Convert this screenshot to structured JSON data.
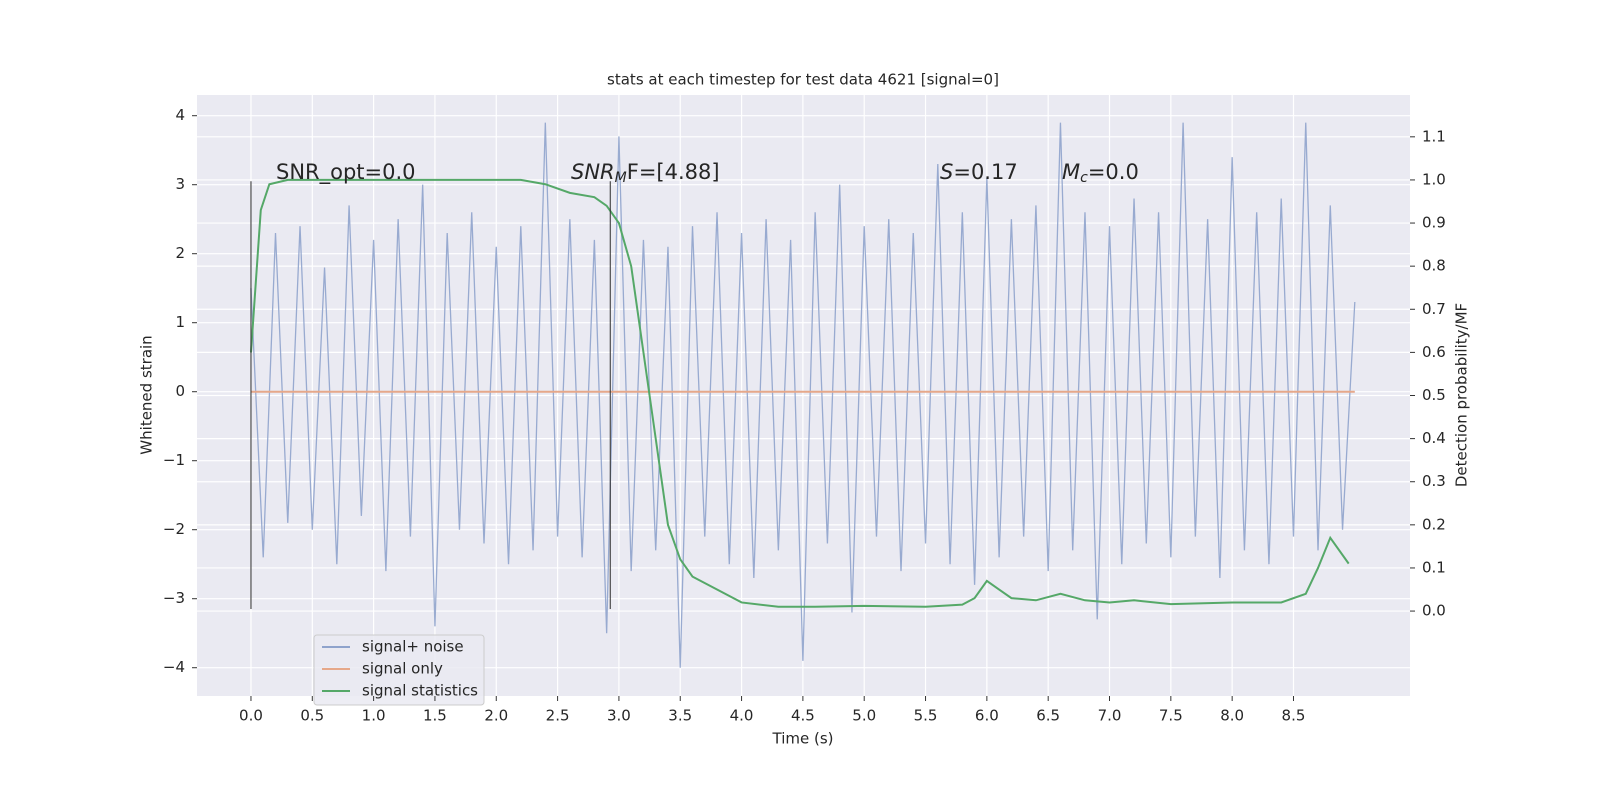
{
  "chart_data": {
    "type": "line",
    "title": "stats at each timestep for test data 4621 [signal=0]",
    "x_label": "Time (s)",
    "y_label": "Whitened strain",
    "y2_label": "Detection probability/MF",
    "xlim": [
      -0.44,
      9.45
    ],
    "xticks": [
      {
        "value": 0,
        "label": "0.0"
      },
      0.5,
      {
        "value": 1,
        "label": "1.0"
      },
      1.5,
      {
        "value": 2,
        "label": "2.0"
      },
      2.5,
      {
        "value": 3,
        "label": "3.0"
      },
      3.5,
      {
        "value": 4,
        "label": "4.0"
      },
      4.5,
      {
        "value": 5,
        "label": "5.0"
      },
      5.5,
      {
        "value": 6,
        "label": "6.0"
      },
      6.5,
      {
        "value": 7,
        "label": "7.0"
      },
      7.5,
      {
        "value": 8,
        "label": "8.0"
      },
      8.5
    ],
    "ylim": [
      -4.41,
      4.3
    ],
    "yticks": [
      {
        "value": -4,
        "label": "−4"
      },
      {
        "value": -3,
        "label": "−3"
      },
      {
        "value": -2,
        "label": "−2"
      },
      {
        "value": -1,
        "label": "−1"
      },
      0,
      1,
      2,
      3,
      4
    ],
    "y2lim": [
      -0.197,
      1.197
    ],
    "y2ticks": [
      {
        "value": 0,
        "label": "0.0"
      },
      0.1,
      0.2,
      0.3,
      0.4,
      0.5,
      0.6,
      0.7,
      0.8,
      0.9,
      {
        "value": 1,
        "label": "1.0"
      },
      1.1
    ],
    "grid": true,
    "legend": "lower left",
    "series": [
      {
        "name": "signal+ noise",
        "color": "#8fa3cc",
        "x": [
          0,
          0.1,
          0.2,
          0.3,
          0.4,
          0.5,
          0.6,
          0.7,
          0.8,
          0.9,
          1,
          1.1,
          1.2,
          1.3,
          1.4,
          1.5,
          1.6,
          1.7,
          1.8,
          1.9,
          2,
          2.1,
          2.2,
          2.3,
          2.4,
          2.5,
          2.6,
          2.7,
          2.8,
          2.9,
          3,
          3.1,
          3.2,
          3.3,
          3.4,
          3.5,
          3.6,
          3.7,
          3.8,
          3.9,
          4,
          4.1,
          4.2,
          4.3,
          4.4,
          4.5,
          4.6,
          4.7,
          4.8,
          4.9,
          5,
          5.1,
          5.2,
          5.3,
          5.4,
          5.5,
          5.6,
          5.7,
          5.8,
          5.9,
          6,
          6.1,
          6.2,
          6.3,
          6.4,
          6.5,
          6.6,
          6.7,
          6.8,
          6.9,
          7,
          7.1,
          7.2,
          7.3,
          7.4,
          7.5,
          7.6,
          7.7,
          7.8,
          7.9,
          8,
          8.1,
          8.2,
          8.3,
          8.4,
          8.5,
          8.6,
          8.7,
          8.8,
          8.9,
          9
        ],
        "values": [
          1.5,
          -2.4,
          2.3,
          -1.9,
          2.4,
          -2.0,
          1.8,
          -2.5,
          2.7,
          -1.8,
          2.2,
          -2.6,
          2.5,
          -2.1,
          3.0,
          -3.4,
          2.3,
          -2.0,
          2.6,
          -2.2,
          2.1,
          -2.5,
          2.4,
          -2.3,
          3.9,
          -2.1,
          2.5,
          -2.4,
          2.2,
          -3.5,
          3.7,
          -2.6,
          2.2,
          -2.3,
          2.1,
          -4.0,
          2.4,
          -2.1,
          2.6,
          -2.5,
          2.3,
          -2.7,
          2.5,
          -2.3,
          2.2,
          -3.9,
          2.6,
          -2.2,
          3.0,
          -3.2,
          2.4,
          -2.1,
          2.5,
          -2.6,
          2.3,
          -2.2,
          3.3,
          -2.5,
          2.6,
          -2.8,
          3.1,
          -2.4,
          2.5,
          -2.1,
          2.7,
          -2.6,
          3.9,
          -2.3,
          2.6,
          -3.3,
          2.4,
          -2.5,
          2.8,
          -2.2,
          2.6,
          -2.4,
          3.9,
          -2.1,
          2.5,
          -2.7,
          3.4,
          -2.3,
          2.6,
          -2.5,
          2.8,
          -2.1,
          3.9,
          -2.3,
          2.7,
          -2.0,
          1.3
        ]
      },
      {
        "name": "signal only",
        "color": "#e6a88a",
        "x": [
          0,
          9
        ],
        "values": [
          0,
          0
        ]
      },
      {
        "name": "signal statistics",
        "color": "#55a868",
        "axis": "y2",
        "x": [
          0,
          0.08,
          0.15,
          0.3,
          2.2,
          2.4,
          2.6,
          2.8,
          2.9,
          3.0,
          3.1,
          3.2,
          3.3,
          3.4,
          3.5,
          3.6,
          3.8,
          4.0,
          4.3,
          4.6,
          5.0,
          5.5,
          5.8,
          5.9,
          6.0,
          6.1,
          6.2,
          6.4,
          6.6,
          6.8,
          7.0,
          7.2,
          7.5,
          8.0,
          8.4,
          8.6,
          8.7,
          8.8,
          8.95
        ],
        "values": [
          0.6,
          0.93,
          0.99,
          1.0,
          1.0,
          0.99,
          0.97,
          0.96,
          0.94,
          0.9,
          0.8,
          0.6,
          0.4,
          0.2,
          0.12,
          0.08,
          0.05,
          0.02,
          0.01,
          0.01,
          0.012,
          0.01,
          0.015,
          0.03,
          0.07,
          0.05,
          0.03,
          0.025,
          0.04,
          0.025,
          0.02,
          0.025,
          0.016,
          0.02,
          0.02,
          0.04,
          0.1,
          0.17,
          0.11
        ]
      }
    ],
    "vlines": [
      0,
      2.93
    ],
    "vline_range": [
      -3.15,
      3.05
    ],
    "annotations": [
      {
        "text": "SNR_opt=0.0"
      },
      {
        "main": "SNR",
        "sub": "M",
        "rest": "F=[4.88]"
      },
      {
        "main": "S",
        "rest": "=0.17"
      },
      {
        "main": "M",
        "sub": "c",
        "rest": "=0.0"
      }
    ]
  }
}
